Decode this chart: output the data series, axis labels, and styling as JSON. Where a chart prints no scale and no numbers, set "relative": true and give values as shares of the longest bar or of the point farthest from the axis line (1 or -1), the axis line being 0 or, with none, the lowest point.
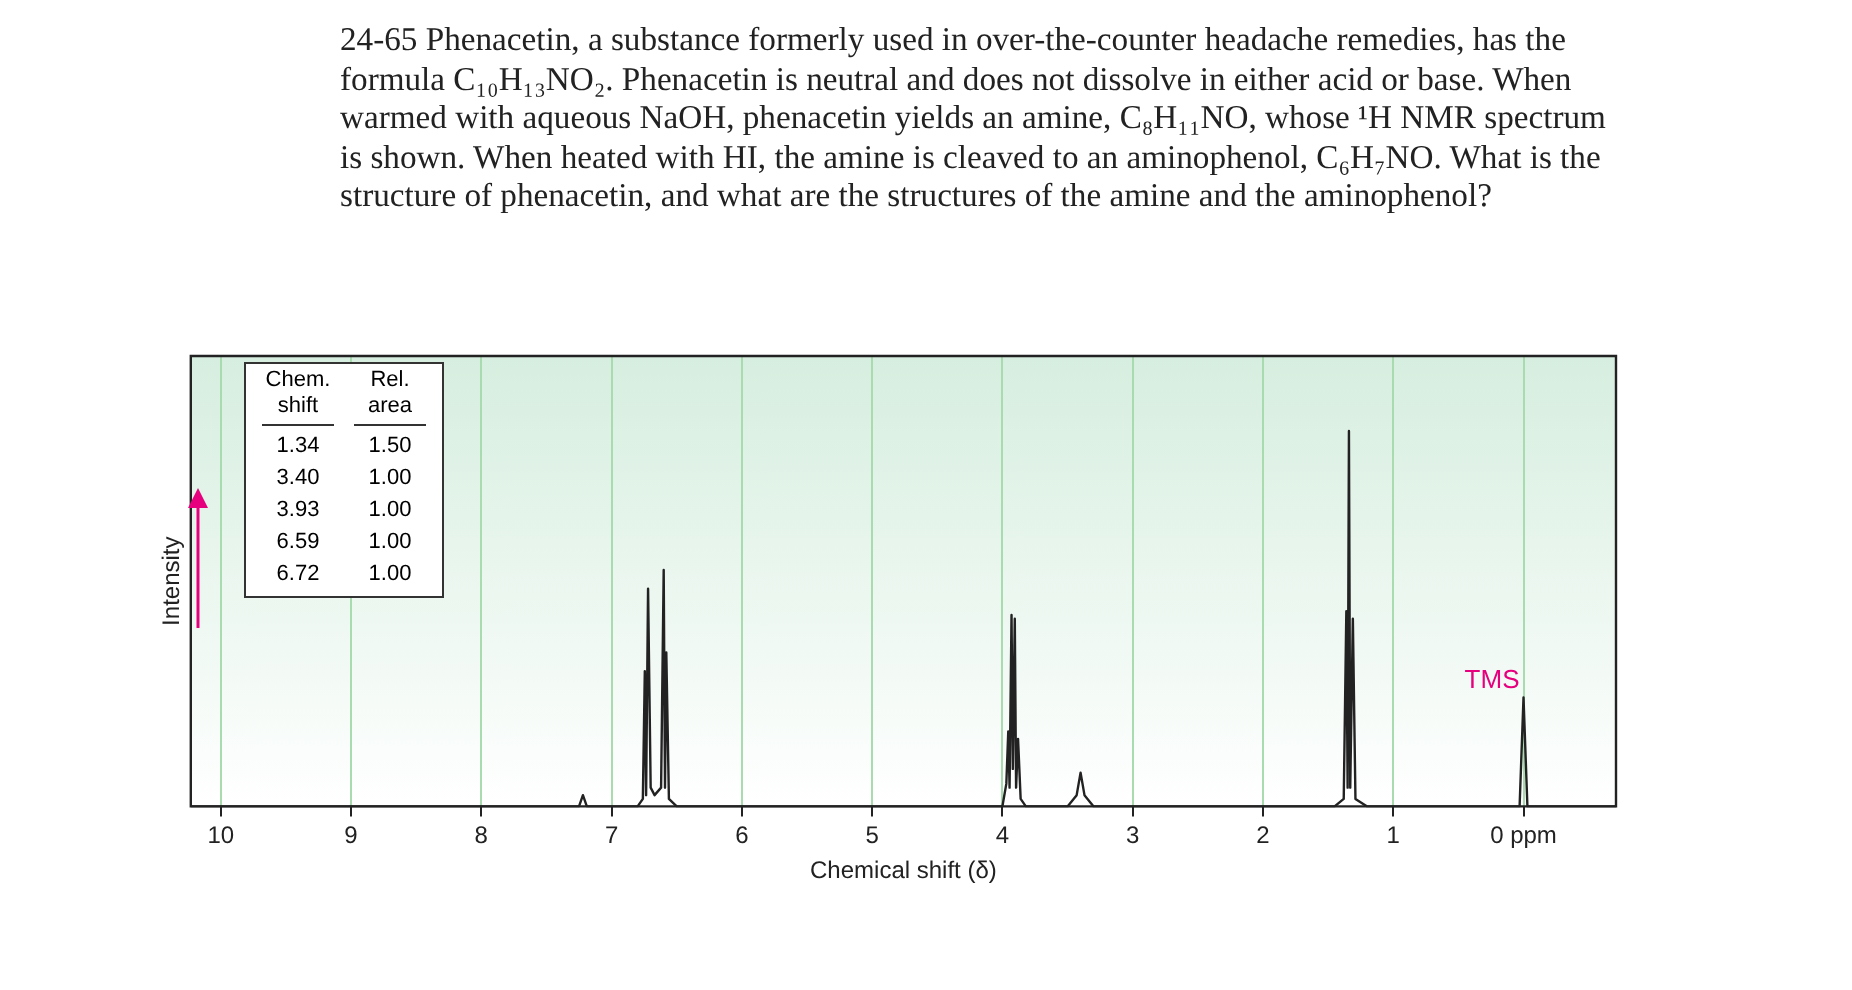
{
  "chart_data": {
    "type": "line",
    "title": "24-65 Phenacetin, a substance formerly used in over-the-counter headache remedies, has the formula C₁₀H₁₃NO₂. Phenacetin is neutral and does not dissolve in either acid or base. When warmed with aqueous NaOH, phenacetin yields an amine, C₈H₁₁NO, whose ¹H NMR spectrum is shown. When heated with HI, the amine is cleaved to an aminophenol, C₆H₇NO. What is the structure of phenacetin, and what are the structures of the amine and the aminophenol?",
    "xlabel": "Chemical shift (δ)",
    "ylabel": "Intensity",
    "relative": true,
    "xlim": [
      10.23,
      -0.71
    ],
    "xticks": [
      10,
      9,
      8,
      7,
      6,
      5,
      4,
      3,
      2,
      1,
      {
        "value": 0,
        "label": "0 ppm"
      }
    ],
    "grid": "x",
    "legend": false,
    "marker": "none",
    "line_style": "solid",
    "annotations": [
      {
        "text": "TMS",
        "x": 0,
        "y": 0.29
      },
      "Chem. shift",
      "Rel. area",
      "1.34",
      "1.50",
      "3.40",
      "1.00",
      "3.93",
      "1.00",
      "6.59",
      "1.00",
      "6.72",
      "1.00"
    ],
    "series": [
      {
        "color": "#222222",
        "x": [
          10.23,
          7.25,
          7.22,
          7.19,
          6.8,
          6.76,
          6.745,
          6.735,
          6.72,
          6.7,
          6.67,
          6.62,
          6.6,
          6.59,
          6.58,
          6.56,
          6.5,
          4.0,
          3.97,
          3.955,
          3.945,
          3.93,
          3.92,
          3.905,
          3.895,
          3.88,
          3.86,
          3.82,
          3.5,
          3.43,
          3.4,
          3.37,
          3.3,
          1.45,
          1.38,
          1.36,
          1.35,
          1.34,
          1.33,
          1.31,
          1.29,
          1.2,
          0.03,
          0,
          -0.03,
          -0.71
        ],
        "values": [
          0,
          0,
          0.03,
          0,
          0,
          0.02,
          0.36,
          0.03,
          0.58,
          0.05,
          0.03,
          0.05,
          0.63,
          0.05,
          0.41,
          0.02,
          0,
          0,
          0.06,
          0.2,
          0.05,
          0.51,
          0.1,
          0.5,
          0.05,
          0.18,
          0.02,
          0,
          0,
          0.03,
          0.09,
          0.03,
          0,
          0,
          0.02,
          0.52,
          0.05,
          1.0,
          0.05,
          0.5,
          0.02,
          0,
          0,
          0.29,
          0,
          0
        ]
      }
    ]
  }
}
